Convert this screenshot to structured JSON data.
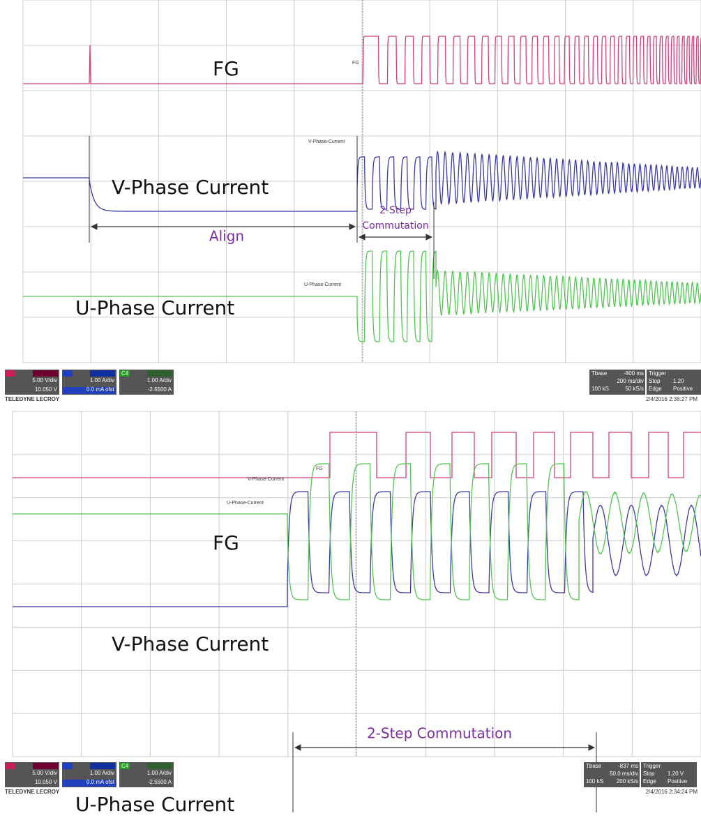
{
  "panels": [
    {
      "labels": {
        "fg": "FG",
        "v_phase": "V-Phase Current",
        "u_phase": "U-Phase Current"
      },
      "trace_tags": {
        "fg": "FG",
        "v_phase": "V-Phase-Current",
        "u_phase": "U-Phase-Current"
      },
      "annotations": {
        "align": "Align",
        "commutation": [
          "2-Step",
          "Commutation"
        ]
      },
      "status": {
        "channels": [
          {
            "scale": "5.00 V/div",
            "offset": "10.050 V"
          },
          {
            "scale": "1.00 A/div",
            "offset": "0.0 mA ofst"
          },
          {
            "name": "C4",
            "scale": "1.00 A/div",
            "offset": "-2.5500 A"
          }
        ],
        "timebase": {
          "label": "Tbase",
          "delay": "-800 ms",
          "rate": "200 ms/div",
          "samples": "100 kS",
          "srate": "50 kS/s"
        },
        "trigger": {
          "label": "Trigger",
          "mode": "Stop",
          "level": "1.20",
          "type": "Edge",
          "slope": "Positive"
        },
        "timestamp": "2/4/2016 2:36:27 PM",
        "brand": "TELEDYNE LECROY"
      }
    },
    {
      "labels": {
        "fg": "FG",
        "v_phase": "V-Phase Current",
        "u_phase": "U-Phase Current"
      },
      "trace_tags": {
        "fg": "FG",
        "v_phase": "V-Phase-Current",
        "u_phase": "U-Phase-Current"
      },
      "annotations": {
        "commutation": "2-Step Commutation"
      },
      "status": {
        "channels": [
          {
            "scale": "5.00 V/div",
            "offset": "10.050 V"
          },
          {
            "scale": "1.00 A/div",
            "offset": "0.0 mA ofst"
          },
          {
            "name": "C4",
            "scale": "1.00 A/div",
            "offset": "-2.5500 A"
          }
        ],
        "timebase": {
          "label": "Tbase",
          "delay": "-837 ms",
          "rate": "50.0 ms/div",
          "samples": "100 kS",
          "srate": "200 kS/s"
        },
        "trigger": {
          "label": "Trigger",
          "mode": "Stop",
          "level": "1.20 V",
          "type": "Edge",
          "slope": "Positive"
        },
        "timestamp": "2/4/2016 2:34:24 PM",
        "brand": "TELEDYNE LECROY"
      }
    }
  ]
}
